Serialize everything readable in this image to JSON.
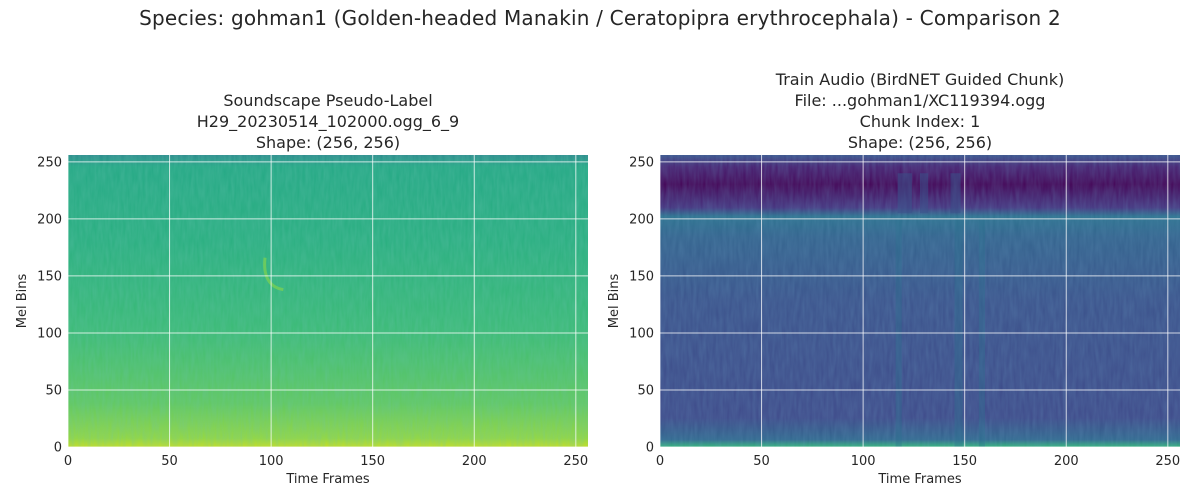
{
  "figure": {
    "suptitle": "Species: gohman1 (Golden-headed Manakin / Ceratopipra erythrocephala) - Comparison 2"
  },
  "chart_data": [
    {
      "type": "heatmap",
      "colormap": "viridis",
      "title_lines": [
        "Soundscape Pseudo-Label",
        "H29_20230514_102000.ogg_6_9",
        "Shape: (256, 256)"
      ],
      "xlabel": "Time Frames",
      "ylabel": "Mel Bins",
      "xlim": [
        0,
        256
      ],
      "ylim": [
        0,
        256
      ],
      "xticks": [
        0,
        50,
        100,
        150,
        200,
        250
      ],
      "yticks": [
        0,
        50,
        100,
        150,
        200,
        250
      ],
      "grid": true,
      "shape": [
        256,
        256
      ]
    },
    {
      "type": "heatmap",
      "colormap": "viridis",
      "title_lines": [
        "Train Audio (BirdNET Guided Chunk)",
        "File: ...gohman1/XC119394.ogg",
        "Chunk Index: 1",
        "Shape: (256, 256)"
      ],
      "xlabel": "Time Frames",
      "ylabel": "Mel Bins",
      "xlim": [
        0,
        256
      ],
      "ylim": [
        0,
        256
      ],
      "xticks": [
        0,
        50,
        100,
        150,
        200,
        250
      ],
      "yticks": [
        0,
        50,
        100,
        150,
        200,
        250
      ],
      "grid": true,
      "shape": [
        256,
        256
      ]
    }
  ]
}
